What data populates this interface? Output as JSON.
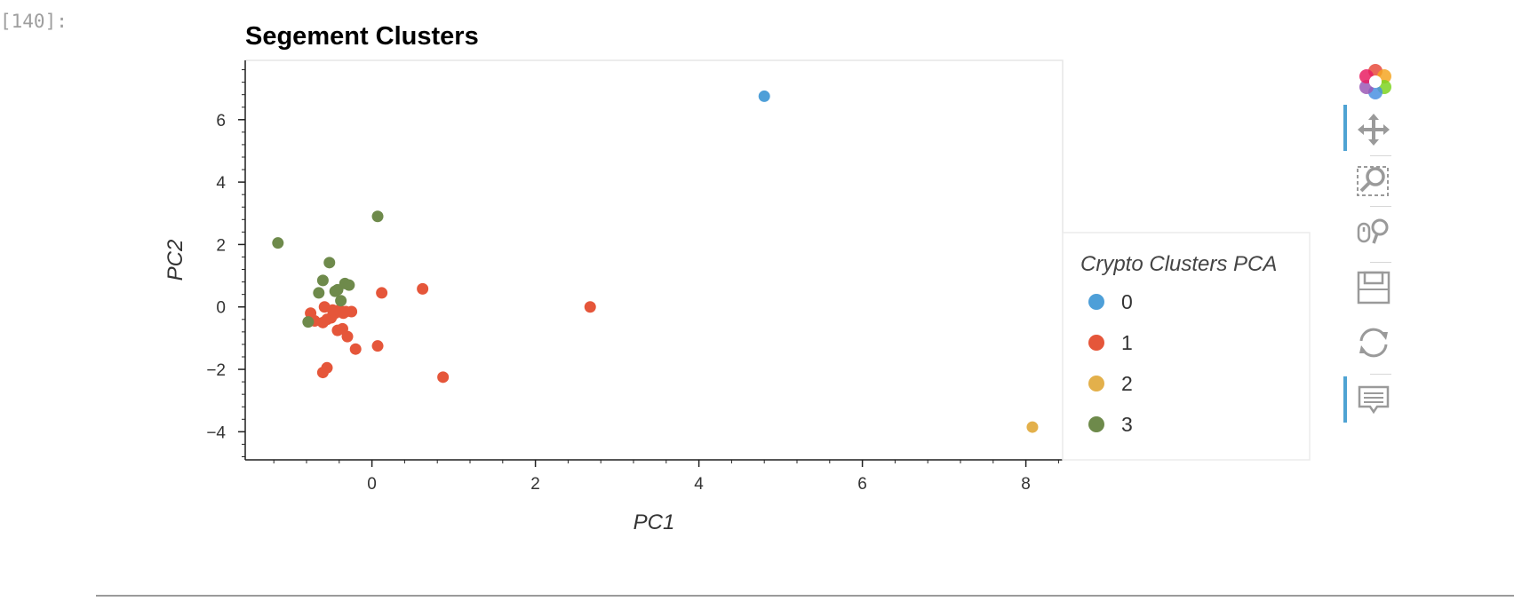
{
  "cell": {
    "prompt": "[140]:"
  },
  "colors": {
    "cluster_0": "#4e9fd8",
    "cluster_1": "#e5563a",
    "cluster_2": "#e3b04b",
    "cluster_3": "#6e8a4b"
  },
  "toolbar": {
    "tools": [
      {
        "name": "bokeh-logo-icon",
        "active": false
      },
      {
        "name": "pan-tool-icon",
        "active": true
      },
      {
        "name": "box-zoom-tool-icon",
        "active": false
      },
      {
        "name": "wheel-zoom-tool-icon",
        "active": false
      },
      {
        "name": "save-tool-icon",
        "active": false
      },
      {
        "name": "reset-tool-icon",
        "active": false
      },
      {
        "name": "hover-tool-icon",
        "active": true
      }
    ]
  },
  "chart_data": {
    "type": "scatter",
    "title": "Segement Clusters",
    "xlabel": "PC1",
    "ylabel": "PC2",
    "xlim": [
      -1.55,
      8.45
    ],
    "ylim": [
      -4.9,
      7.9
    ],
    "x_ticks": [
      0,
      2,
      4,
      6,
      8
    ],
    "y_ticks": [
      -4,
      -2,
      0,
      2,
      4,
      6
    ],
    "grid": false,
    "legend": {
      "title": "Crypto Clusters PCA",
      "position": "right",
      "entries": [
        "0",
        "1",
        "2",
        "3"
      ]
    },
    "series": [
      {
        "name": "0",
        "color": "#4e9fd8",
        "points": [
          [
            4.8,
            6.75
          ]
        ]
      },
      {
        "name": "1",
        "color": "#e5563a",
        "points": [
          [
            -0.75,
            -0.2
          ],
          [
            -0.7,
            -0.45
          ],
          [
            -0.6,
            -0.5
          ],
          [
            -0.58,
            0.0
          ],
          [
            -0.55,
            -0.4
          ],
          [
            -0.5,
            -0.35
          ],
          [
            -0.48,
            -0.1
          ],
          [
            -0.45,
            -0.2
          ],
          [
            -0.42,
            -0.75
          ],
          [
            -0.4,
            -0.1
          ],
          [
            -0.35,
            -0.2
          ],
          [
            -0.36,
            -0.7
          ],
          [
            -0.32,
            -0.15
          ],
          [
            -0.3,
            -0.95
          ],
          [
            -0.25,
            -0.15
          ],
          [
            -0.2,
            -1.35
          ],
          [
            -0.55,
            -1.95
          ],
          [
            -0.6,
            -2.1
          ],
          [
            0.07,
            -1.25
          ],
          [
            0.12,
            0.45
          ],
          [
            0.62,
            0.58
          ],
          [
            0.87,
            -2.25
          ],
          [
            2.67,
            0.0
          ]
        ]
      },
      {
        "name": "2",
        "color": "#e3b04b",
        "points": [
          [
            8.08,
            -3.85
          ]
        ]
      },
      {
        "name": "3",
        "color": "#6e8a4b",
        "points": [
          [
            -1.15,
            2.05
          ],
          [
            -0.78,
            -0.48
          ],
          [
            -0.65,
            0.45
          ],
          [
            -0.6,
            0.85
          ],
          [
            -0.52,
            1.42
          ],
          [
            -0.45,
            0.5
          ],
          [
            -0.42,
            0.55
          ],
          [
            -0.38,
            0.2
          ],
          [
            -0.33,
            0.75
          ],
          [
            -0.28,
            0.7
          ],
          [
            0.07,
            2.9
          ]
        ]
      }
    ]
  }
}
